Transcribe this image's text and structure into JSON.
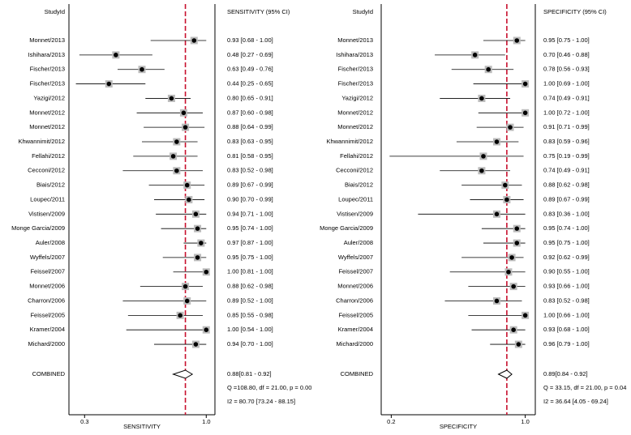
{
  "chart_data": [
    {
      "type": "forest",
      "column_label": "StudyId",
      "value_column_label": "SENSITIVITY (95% CI)",
      "xlabel": "SENSITIVITY",
      "xlim": [
        0.21,
        1.05
      ],
      "xticks": [
        0.3,
        {
          "value": 1,
          "label": "1.0"
        }
      ],
      "ref_color": "#c8102e",
      "categories": [
        "Monnet/2013",
        "Ishihara/2013",
        "Fischer/2013",
        "Fischer/2013",
        "Yazigi/2012",
        "Monnet/2012",
        "Monnet/2012",
        "Khwannimit/2012",
        "Fellahi/2012",
        "Cecconi/2012",
        "Biais/2012",
        "Loupec/2011",
        "Vistisen/2009",
        "Monge Garcia/2009",
        "Auler/2008",
        "Wyffels/2007",
        "Feissel/2007",
        "Monnet/2006",
        "Charron/2006",
        "Feissel/2005",
        "Kramer/2004",
        "Michard/2000"
      ],
      "values": [
        0.93,
        0.48,
        0.63,
        0.44,
        0.8,
        0.87,
        0.88,
        0.83,
        0.81,
        0.83,
        0.89,
        0.9,
        0.94,
        0.95,
        0.97,
        0.95,
        1.0,
        0.88,
        0.89,
        0.85,
        1.0,
        0.94
      ],
      "lower": [
        0.68,
        0.27,
        0.49,
        0.25,
        0.65,
        0.6,
        0.64,
        0.63,
        0.58,
        0.52,
        0.67,
        0.7,
        0.71,
        0.74,
        0.87,
        0.75,
        0.81,
        0.62,
        0.52,
        0.55,
        0.54,
        0.7
      ],
      "upper": [
        1.0,
        0.69,
        0.76,
        0.65,
        0.91,
        0.98,
        0.99,
        0.95,
        0.95,
        0.98,
        0.99,
        0.99,
        1.0,
        1.0,
        1.0,
        1.0,
        1.0,
        0.98,
        1.0,
        0.98,
        1.0,
        1.0
      ],
      "value_labels": [
        "0.93 [0.68 - 1.00]",
        "0.48 [0.27 - 0.69]",
        "0.63 [0.49 - 0.76]",
        "0.44 [0.25 - 0.65]",
        "0.80 [0.65 - 0.91]",
        "0.87 [0.60 - 0.98]",
        "0.88 [0.64 - 0.99]",
        "0.83 [0.63 - 0.95]",
        "0.81 [0.58 - 0.95]",
        "0.83 [0.52 - 0.98]",
        "0.89 [0.67 - 0.99]",
        "0.90 [0.70 - 0.99]",
        "0.94 [0.71 - 1.00]",
        "0.95 [0.74 - 1.00]",
        "0.97 [0.87 - 1.00]",
        "0.95 [0.75 - 1.00]",
        "1.00 [0.81 - 1.00]",
        "0.88 [0.62 - 0.98]",
        "0.89 [0.52 - 1.00]",
        "0.85 [0.55 - 0.98]",
        "1.00 [0.54 - 1.00]",
        "0.94 [0.70 - 1.00]"
      ],
      "combined": {
        "label": "COMBINED",
        "value": 0.88,
        "lower": 0.81,
        "upper": 0.92,
        "value_label": "0.88[0.81 - 0.92]"
      },
      "annotations": [
        "Q =108.80, df = 21.00, p =  0.00",
        "I2 = 80.70 [73.24 - 88.15]"
      ]
    },
    {
      "type": "forest",
      "column_label": "StudyId",
      "value_column_label": "SPECIFICITY (95% CI)",
      "xlabel": "SPECIFICITY",
      "xlim": [
        0.14,
        1.06
      ],
      "xticks": [
        0.2,
        {
          "value": 1,
          "label": "1.0"
        }
      ],
      "ref_color": "#c8102e",
      "categories": [
        "Monnet/2013",
        "Ishihara/2013",
        "Fischer/2013",
        "Fischer/2013",
        "Yazigi/2012",
        "Monnet/2012",
        "Monnet/2012",
        "Khwannimit/2012",
        "Fellahi/2012",
        "Cecconi/2012",
        "Biais/2012",
        "Loupec/2011",
        "Vistisen/2009",
        "Monge Garcia/2009",
        "Auler/2008",
        "Wyffels/2007",
        "Feissel/2007",
        "Monnet/2006",
        "Charron/2006",
        "Feissel/2005",
        "Kramer/2004",
        "Michard/2000"
      ],
      "values": [
        0.95,
        0.7,
        0.78,
        1.0,
        0.74,
        1.0,
        0.91,
        0.83,
        0.75,
        0.74,
        0.88,
        0.89,
        0.83,
        0.95,
        0.95,
        0.92,
        0.9,
        0.93,
        0.83,
        1.0,
        0.93,
        0.96
      ],
      "lower": [
        0.75,
        0.46,
        0.56,
        0.69,
        0.49,
        0.72,
        0.71,
        0.59,
        0.19,
        0.49,
        0.62,
        0.67,
        0.36,
        0.74,
        0.75,
        0.62,
        0.55,
        0.66,
        0.52,
        0.66,
        0.68,
        0.79
      ],
      "upper": [
        1.0,
        0.88,
        0.93,
        1.0,
        0.91,
        1.0,
        0.99,
        0.96,
        0.99,
        0.91,
        0.98,
        0.99,
        1.0,
        1.0,
        1.0,
        0.99,
        1.0,
        1.0,
        0.98,
        1.0,
        1.0,
        1.0
      ],
      "value_labels": [
        "0.95 [0.75 - 1.00]",
        "0.70 [0.46 - 0.88]",
        "0.78 [0.56 - 0.93]",
        "1.00 [0.69 - 1.00]",
        "0.74 [0.49 - 0.91]",
        "1.00 [0.72 - 1.00]",
        "0.91 [0.71 - 0.99]",
        "0.83 [0.59 - 0.96]",
        "0.75 [0.19 - 0.99]",
        "0.74 [0.49 - 0.91]",
        "0.88 [0.62 - 0.98]",
        "0.89 [0.67 - 0.99]",
        "0.83 [0.36 - 1.00]",
        "0.95 [0.74 - 1.00]",
        "0.95 [0.75 - 1.00]",
        "0.92 [0.62 - 0.99]",
        "0.90 [0.55 - 1.00]",
        "0.93 [0.66 - 1.00]",
        "0.83 [0.52 - 0.98]",
        "1.00 [0.66 - 1.00]",
        "0.93 [0.68 - 1.00]",
        "0.96 [0.79 - 1.00]"
      ],
      "combined": {
        "label": "COMBINED",
        "value": 0.89,
        "lower": 0.84,
        "upper": 0.92,
        "value_label": "0.89[0.84 - 0.92]"
      },
      "annotations": [
        "Q = 33.15, df = 21.00, p =  0.04",
        "I2 = 36.64 [4.05 - 69.24]"
      ]
    }
  ]
}
